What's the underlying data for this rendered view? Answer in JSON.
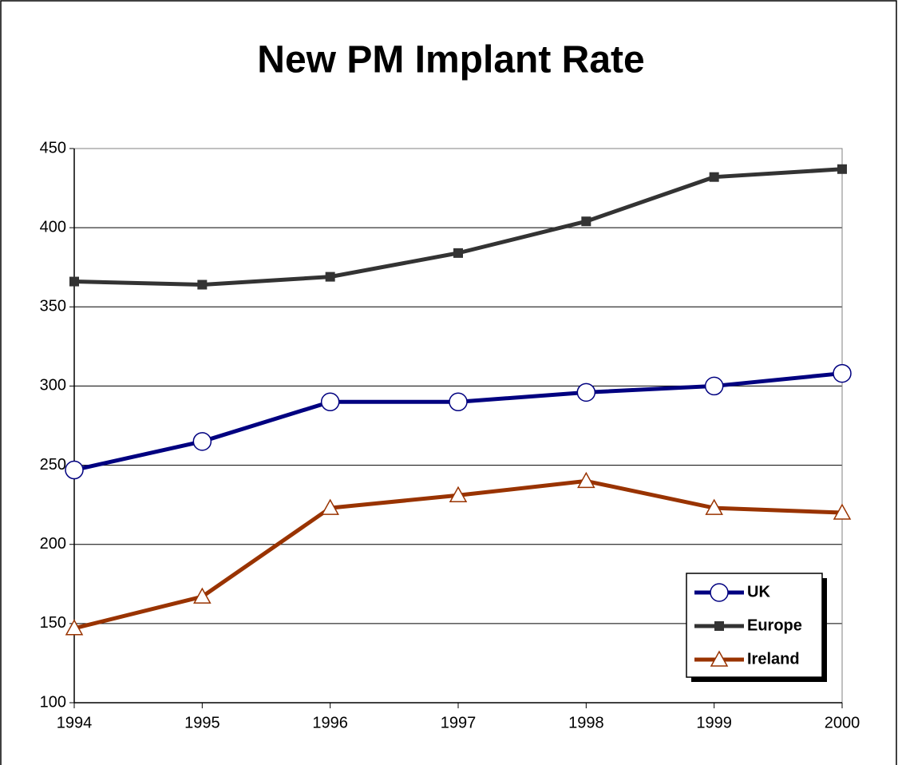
{
  "chart_data": {
    "type": "line",
    "title": "New PM Implant Rate",
    "x": [
      1994,
      1995,
      1996,
      1997,
      1998,
      1999,
      2000
    ],
    "xlim": [
      1994,
      2000
    ],
    "xticks": [
      1994,
      1995,
      1996,
      1997,
      1998,
      1999,
      2000
    ],
    "ylim": [
      100,
      450
    ],
    "yticks": [
      100,
      150,
      200,
      250,
      300,
      350,
      400,
      450
    ],
    "grid": true,
    "legend": "lower right",
    "series": [
      {
        "name": "UK",
        "color": "#000080",
        "marker": "circle",
        "values": [
          247,
          265,
          290,
          290,
          296,
          300,
          308
        ]
      },
      {
        "name": "Europe",
        "color": "#333333",
        "marker": "square",
        "values": [
          366,
          364,
          369,
          384,
          404,
          432,
          437
        ]
      },
      {
        "name": "Ireland",
        "color": "#993300",
        "marker": "triangle",
        "values": [
          147,
          167,
          223,
          231,
          240,
          223,
          220
        ]
      }
    ]
  }
}
